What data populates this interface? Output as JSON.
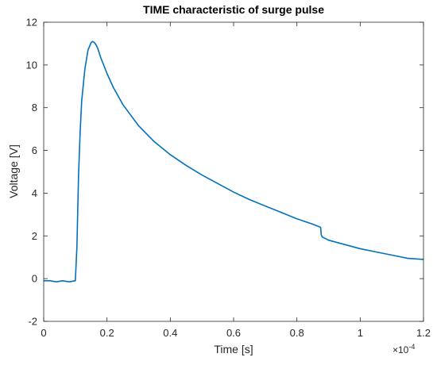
{
  "chart_data": {
    "type": "line",
    "title": "TIME characteristic of surge pulse",
    "xlabel": "Time [s]",
    "ylabel": "Voltage [V]",
    "x_multiplier_base": "×10",
    "x_multiplier_exp": "-4",
    "xlim": [
      0,
      1.2
    ],
    "ylim": [
      -2,
      12
    ],
    "x_ticks": [
      "0",
      "0.2",
      "0.4",
      "0.6",
      "0.8",
      "1",
      "1.2"
    ],
    "y_ticks": [
      "-2",
      "0",
      "2",
      "4",
      "6",
      "8",
      "10",
      "12"
    ],
    "grid": false,
    "line_color": "#0072BD",
    "series": [
      {
        "x": [
          0.0,
          0.02,
          0.04,
          0.06,
          0.08,
          0.1,
          0.105,
          0.11,
          0.115,
          0.12,
          0.13,
          0.14,
          0.15,
          0.155,
          0.16,
          0.165,
          0.17,
          0.18,
          0.2,
          0.22,
          0.25,
          0.28,
          0.3,
          0.35,
          0.4,
          0.45,
          0.5,
          0.55,
          0.6,
          0.65,
          0.7,
          0.75,
          0.8,
          0.85,
          0.875,
          0.877,
          0.88,
          0.9,
          0.95,
          1.0,
          1.05,
          1.1,
          1.15,
          1.2
        ],
        "y": [
          -0.1,
          -0.1,
          -0.15,
          -0.1,
          -0.15,
          -0.1,
          1.5,
          4.8,
          6.8,
          8.3,
          9.8,
          10.7,
          11.05,
          11.1,
          11.05,
          10.95,
          10.8,
          10.35,
          9.6,
          8.95,
          8.15,
          7.55,
          7.15,
          6.4,
          5.8,
          5.3,
          4.85,
          4.45,
          4.05,
          3.7,
          3.4,
          3.1,
          2.8,
          2.55,
          2.4,
          2.05,
          1.95,
          1.8,
          1.6,
          1.4,
          1.25,
          1.1,
          0.95,
          0.9
        ]
      }
    ]
  }
}
